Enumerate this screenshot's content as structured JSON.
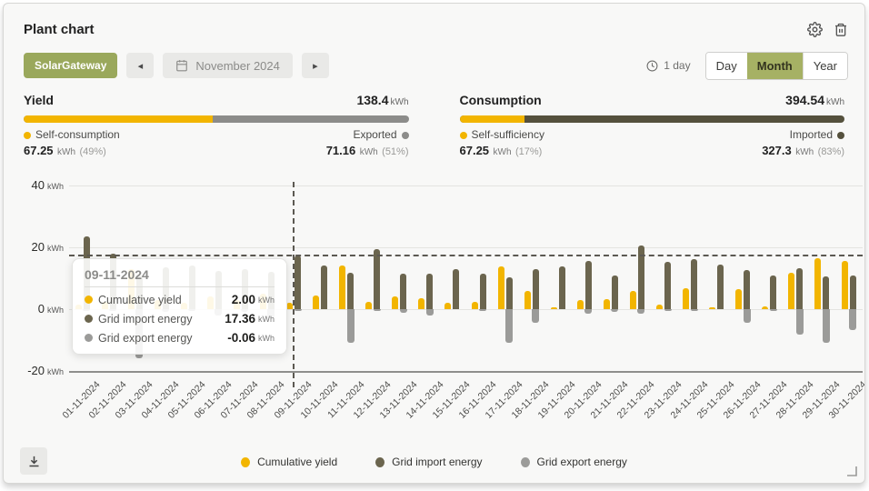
{
  "header": {
    "title": "Plant chart"
  },
  "toolbar": {
    "gateway_label": "SolarGateway",
    "prev": "◂",
    "next": "▸",
    "date_label": "November 2024",
    "interval_label": "1 day",
    "views": [
      "Day",
      "Month",
      "Year"
    ],
    "selected_view": "Month"
  },
  "colors": {
    "yellow": "#f2b500",
    "import": "#6b654e",
    "export": "#9b9b99",
    "yield_rest": "#8c8c8a",
    "consumption_rest": "#55513d",
    "accent": "#9aa85c"
  },
  "summary": {
    "yield": {
      "title": "Yield",
      "total": "138.4",
      "unit": "kWh",
      "bar_pct": 49,
      "left_label": "Self-consumption",
      "left_value": "67.25",
      "left_unit": "kWh",
      "left_pct": "(49%)",
      "right_label": "Exported",
      "right_value": "71.16",
      "right_unit": "kWh",
      "right_pct": "(51%)"
    },
    "consumption": {
      "title": "Consumption",
      "total": "394.54",
      "unit": "kWh",
      "bar_pct": 17,
      "left_label": "Self-sufficiency",
      "left_value": "67.25",
      "left_unit": "kWh",
      "left_pct": "(17%)",
      "right_label": "Imported",
      "right_value": "327.3",
      "right_unit": "kWh",
      "right_pct": "(83%)"
    }
  },
  "tooltip": {
    "date": "09-11-2024",
    "unit": "kWh",
    "rows": [
      {
        "label": "Cumulative yield",
        "value": "2.00",
        "color": "#f2b500"
      },
      {
        "label": "Grid import energy",
        "value": "17.36",
        "color": "#6b654e"
      },
      {
        "label": "Grid export energy",
        "value": "-0.06",
        "color": "#9b9b99"
      }
    ]
  },
  "chart_data": {
    "type": "bar",
    "title": "",
    "xlabel": "",
    "ylabel": "kWh",
    "ylim": [
      -20,
      40
    ],
    "yticks": [
      40,
      20,
      0,
      -20
    ],
    "grid": true,
    "legend_position": "bottom",
    "crosshair": {
      "x": "09-11-2024",
      "y": 17.36
    },
    "x": [
      "01-11-2024",
      "02-11-2024",
      "03-11-2024",
      "04-11-2024",
      "05-11-2024",
      "06-11-2024",
      "07-11-2024",
      "08-11-2024",
      "09-11-2024",
      "10-11-2024",
      "11-11-2024",
      "12-11-2024",
      "13-11-2024",
      "14-11-2024",
      "15-11-2024",
      "16-11-2024",
      "17-11-2024",
      "18-11-2024",
      "19-11-2024",
      "20-11-2024",
      "21-11-2024",
      "22-11-2024",
      "23-11-2024",
      "24-11-2024",
      "25-11-2024",
      "26-11-2024",
      "27-11-2024",
      "28-11-2024",
      "29-11-2024",
      "30-11-2024"
    ],
    "series": [
      {
        "name": "Cumulative yield",
        "color": "#f2b500",
        "values": [
          1.5,
          2.5,
          13,
          3,
          2,
          4,
          3,
          5,
          2.0,
          4.4,
          14,
          2.5,
          4,
          3.5,
          2,
          2.5,
          13.8,
          6,
          0.7,
          2.8,
          3.2,
          5.8,
          1.5,
          6.8,
          0.5,
          6.5,
          0.8,
          11.7,
          16.4,
          15.7
        ]
      },
      {
        "name": "Grid import energy",
        "color": "#6b654e",
        "values": [
          23.5,
          17.8,
          11,
          13.5,
          14,
          12.5,
          13,
          12,
          17.36,
          14,
          11.8,
          19.5,
          11.5,
          11.5,
          13,
          11.4,
          10.4,
          13,
          13.7,
          15.7,
          11,
          20.6,
          15.2,
          16.2,
          14.5,
          12.7,
          11,
          13.1,
          10.5,
          11
        ]
      },
      {
        "name": "Grid export energy",
        "color": "#9b9b99",
        "values": [
          -0.2,
          -0.5,
          -16,
          -1,
          -0.5,
          -2,
          -1,
          -3,
          -0.06,
          0,
          -11,
          -0.5,
          -1.2,
          -2,
          0,
          -0.3,
          -11,
          -4.5,
          0,
          -1.5,
          -1,
          -1.5,
          -0.5,
          -0.5,
          0,
          -4.5,
          -0.3,
          -8.3,
          -11,
          -6.8
        ]
      }
    ]
  }
}
